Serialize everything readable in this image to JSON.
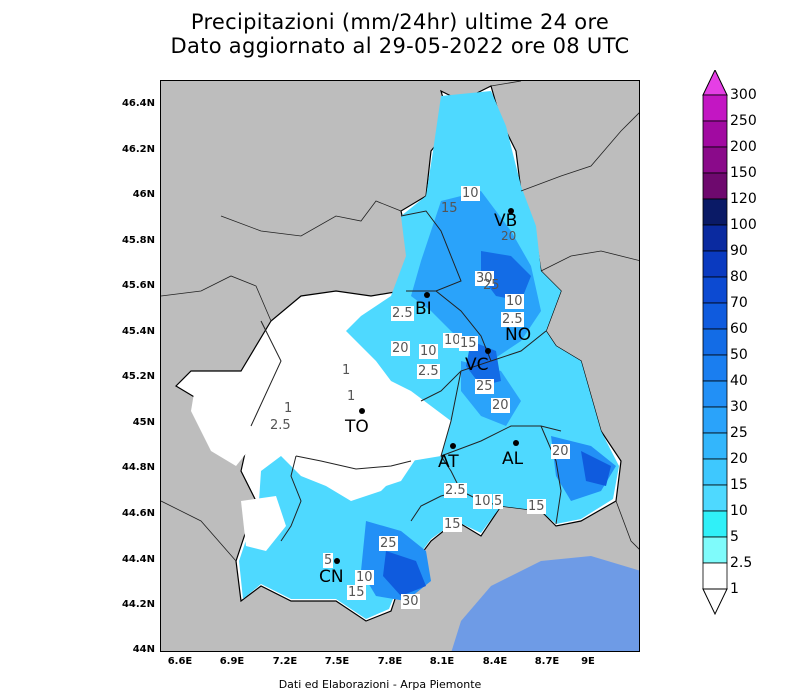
{
  "title": {
    "line1": "Precipitazioni (mm/24hr) ultime 24 ore",
    "line2": "Dato aggiornato al 29-05-2022 ore 08 UTC"
  },
  "axes": {
    "lat_ticks": [
      "46.4N",
      "46.2N",
      "46N",
      "45.8N",
      "45.6N",
      "45.4N",
      "45.2N",
      "45N",
      "44.8N",
      "44.6N",
      "44.4N",
      "44.2N",
      "44N"
    ],
    "lon_ticks": [
      "6.6E",
      "6.9E",
      "7.2E",
      "7.5E",
      "7.8E",
      "8.1E",
      "8.4E",
      "8.7E",
      "9E"
    ]
  },
  "colorbar": {
    "levels": [
      "300",
      "250",
      "200",
      "150",
      "120",
      "100",
      "90",
      "80",
      "70",
      "60",
      "50",
      "40",
      "30",
      "25",
      "20",
      "15",
      "10",
      "5",
      "2.5",
      "1"
    ],
    "colors": [
      "#e53fe5",
      "#c316c3",
      "#a10aa1",
      "#8a0a8a",
      "#6e096e",
      "#0a1a66",
      "#0a2aa0",
      "#0a3ac0",
      "#0c4ad2",
      "#0f5bde",
      "#136ce6",
      "#1a7ef0",
      "#2290f6",
      "#2aa3fa",
      "#33b6fc",
      "#3ec8fe",
      "#4ed9ff",
      "#30f0f8",
      "#7ffbfb",
      "#ffffff"
    ]
  },
  "cities": [
    {
      "code": "VB"
    },
    {
      "code": "BI"
    },
    {
      "code": "NO"
    },
    {
      "code": "VC"
    },
    {
      "code": "TO"
    },
    {
      "code": "AT"
    },
    {
      "code": "AL"
    },
    {
      "code": "CN"
    }
  ],
  "contour_labels": [
    "10",
    "15",
    "20",
    "30",
    "25",
    "10",
    "2.5",
    "10",
    "15",
    "10",
    "20",
    "2.5",
    "25",
    "20",
    "2.5",
    "1",
    "1",
    "1",
    "2.5",
    "20",
    "2.5",
    "10",
    "5",
    "15",
    "15",
    "25",
    "5",
    "10",
    "15",
    "30"
  ],
  "credit": "Dati ed Elaborazioni - Arpa Piemonte"
}
